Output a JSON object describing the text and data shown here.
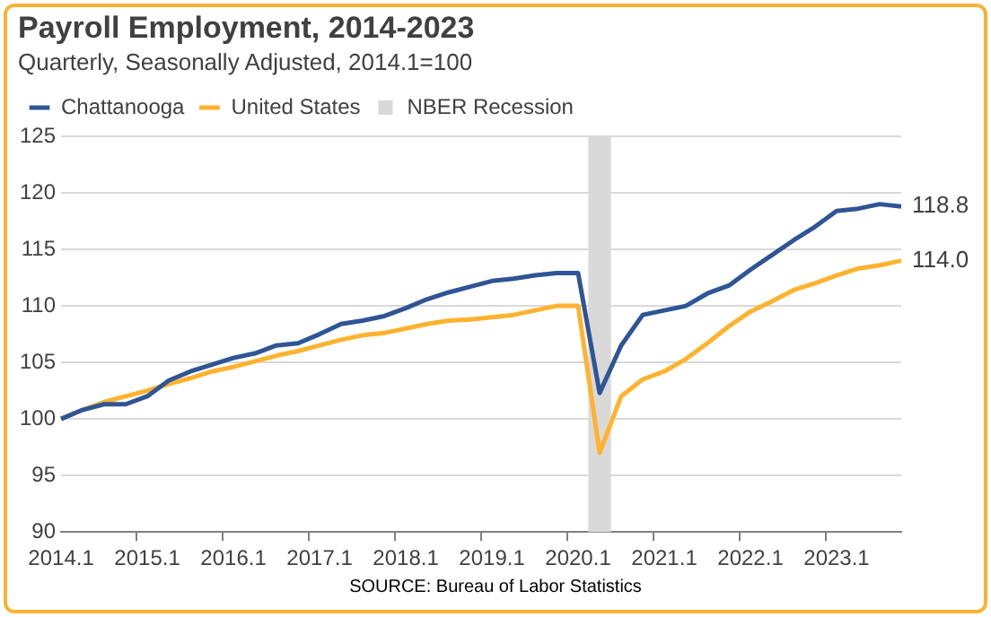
{
  "chart_data": {
    "type": "line",
    "title": "Payroll Employment, 2014-2023",
    "subtitle": "Quarterly, Seasonally Adjusted, 2014.1=100",
    "categories": [
      "2014.1",
      null,
      null,
      null,
      "2015.1",
      null,
      null,
      null,
      "2016.1",
      null,
      null,
      null,
      "2017.1",
      null,
      null,
      null,
      "2018.1",
      null,
      null,
      null,
      "2019.1",
      null,
      null,
      null,
      "2020.1",
      null,
      null,
      null,
      "2021.1",
      null,
      null,
      null,
      "2022.1",
      null,
      null,
      null,
      "2023.1",
      null,
      null,
      null
    ],
    "series": [
      {
        "name": "NBER Recession",
        "type": "bar",
        "color": "#d9d9d9",
        "values": [
          null,
          null,
          null,
          null,
          null,
          null,
          null,
          null,
          null,
          null,
          null,
          null,
          null,
          null,
          null,
          null,
          null,
          null,
          null,
          null,
          null,
          null,
          null,
          null,
          null,
          125,
          null,
          null,
          null,
          null,
          null,
          null,
          null,
          null,
          null,
          null,
          null,
          null,
          null,
          null
        ]
      },
      {
        "name": "Chattanooga",
        "color": "#2f5597",
        "values": [
          100.0,
          100.8,
          101.3,
          101.3,
          102.0,
          103.4,
          104.2,
          104.8,
          105.4,
          105.8,
          106.5,
          106.7,
          107.5,
          108.4,
          108.7,
          109.1,
          109.8,
          110.6,
          111.2,
          111.7,
          112.2,
          112.4,
          112.7,
          112.9,
          112.9,
          102.3,
          106.5,
          109.2,
          109.6,
          110.0,
          111.1,
          111.8,
          113.2,
          114.5,
          115.8,
          117.0,
          118.4,
          118.6,
          119.0,
          118.8
        ],
        "value_labels": [
          null,
          null,
          null,
          null,
          null,
          null,
          null,
          null,
          null,
          null,
          null,
          null,
          null,
          null,
          null,
          null,
          null,
          null,
          null,
          null,
          null,
          null,
          null,
          null,
          null,
          null,
          null,
          null,
          null,
          null,
          null,
          null,
          null,
          null,
          null,
          null,
          null,
          null,
          null,
          "118.8"
        ]
      },
      {
        "name": "United States",
        "color": "#ffb22e",
        "values": [
          100.0,
          100.8,
          101.5,
          102.0,
          102.5,
          103.1,
          103.6,
          104.2,
          104.6,
          105.1,
          105.6,
          106.0,
          106.5,
          107.0,
          107.4,
          107.6,
          108.0,
          108.4,
          108.7,
          108.8,
          109.0,
          109.2,
          109.6,
          110.0,
          110.0,
          97.0,
          102.0,
          103.5,
          104.2,
          105.3,
          106.7,
          108.2,
          109.5,
          110.4,
          111.4,
          112.0,
          112.7,
          113.3,
          113.6,
          114.0
        ],
        "value_labels": [
          null,
          null,
          null,
          null,
          null,
          null,
          null,
          null,
          null,
          null,
          null,
          null,
          null,
          null,
          null,
          null,
          null,
          null,
          null,
          null,
          null,
          null,
          null,
          null,
          null,
          null,
          null,
          null,
          null,
          null,
          null,
          null,
          null,
          null,
          null,
          null,
          null,
          null,
          null,
          "114.0"
        ]
      }
    ],
    "ylim": [
      90,
      125
    ],
    "yticks": [
      90,
      95,
      100,
      105,
      110,
      115,
      120,
      125
    ],
    "grid": "y",
    "legend": "top left",
    "marker": "none",
    "line_style": "solid",
    "annotations": [
      "SOURCE: Bureau of Labor Statistics"
    ]
  }
}
